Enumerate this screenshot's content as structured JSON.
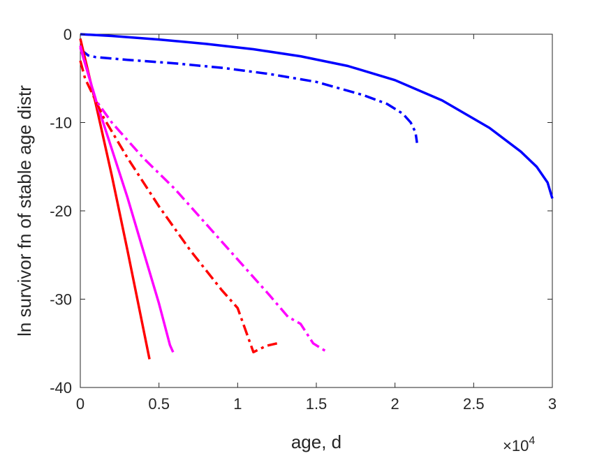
{
  "chart_data": {
    "type": "line",
    "title": "",
    "xlabel": "age, d",
    "ylabel": "ln survivor fn of stable age distr",
    "x_exponent_label": "×10",
    "x_exponent_power": "4",
    "xlim": [
      0,
      30000
    ],
    "ylim": [
      -40,
      0
    ],
    "x_ticks": [
      0,
      5000,
      10000,
      15000,
      20000,
      25000,
      30000
    ],
    "x_tick_labels": [
      "0",
      "0.5",
      "1",
      "1.5",
      "2",
      "2.5",
      "3"
    ],
    "y_ticks": [
      0,
      -10,
      -20,
      -30,
      -40
    ],
    "y_tick_labels": [
      "0",
      "-10",
      "-20",
      "-30",
      "-40"
    ],
    "grid": false,
    "series": [
      {
        "color": "#0000ff",
        "dash": "solid",
        "points": [
          [
            0,
            0
          ],
          [
            2000,
            -0.2
          ],
          [
            5000,
            -0.6
          ],
          [
            8000,
            -1.1
          ],
          [
            11000,
            -1.7
          ],
          [
            14000,
            -2.5
          ],
          [
            17000,
            -3.6
          ],
          [
            20000,
            -5.2
          ],
          [
            23000,
            -7.5
          ],
          [
            26000,
            -10.6
          ],
          [
            28000,
            -13.3
          ],
          [
            29000,
            -15.0
          ],
          [
            29700,
            -16.8
          ],
          [
            30000,
            -18.6
          ]
        ]
      },
      {
        "color": "#0000ff",
        "dash": "dashdot",
        "points": [
          [
            0,
            -1.7
          ],
          [
            500,
            -2.4
          ],
          [
            1000,
            -2.6
          ],
          [
            3000,
            -2.9
          ],
          [
            6000,
            -3.3
          ],
          [
            9000,
            -3.8
          ],
          [
            12000,
            -4.5
          ],
          [
            15000,
            -5.4
          ],
          [
            18000,
            -6.9
          ],
          [
            19500,
            -7.9
          ],
          [
            20500,
            -9.0
          ],
          [
            21000,
            -10.0
          ],
          [
            21300,
            -11.1
          ],
          [
            21400,
            -12.3
          ]
        ]
      },
      {
        "color": "#ff0000",
        "dash": "solid",
        "points": [
          [
            0,
            -0.5
          ],
          [
            1000,
            -8.0
          ],
          [
            2000,
            -16.0
          ],
          [
            3000,
            -24.5
          ],
          [
            4400,
            -36.8
          ]
        ]
      },
      {
        "color": "#ff00ff",
        "dash": "solid",
        "points": [
          [
            0,
            -1.5
          ],
          [
            1000,
            -7.5
          ],
          [
            2000,
            -13.0
          ],
          [
            3000,
            -18.5
          ],
          [
            4000,
            -24.5
          ],
          [
            5000,
            -30.5
          ],
          [
            5700,
            -35.2
          ],
          [
            5900,
            -36.0
          ]
        ]
      },
      {
        "color": "#ff0000",
        "dash": "dashdot",
        "points": [
          [
            0,
            -3.0
          ],
          [
            300,
            -5.0
          ],
          [
            700,
            -6.5
          ],
          [
            1500,
            -9.5
          ],
          [
            3000,
            -14.0
          ],
          [
            5000,
            -19.5
          ],
          [
            7000,
            -24.5
          ],
          [
            9000,
            -29.0
          ],
          [
            10000,
            -31.0
          ],
          [
            10500,
            -33.5
          ],
          [
            11000,
            -36.0
          ],
          [
            11800,
            -35.3
          ],
          [
            12500,
            -35.0
          ]
        ]
      },
      {
        "color": "#ff00ff",
        "dash": "dashdot",
        "points": [
          [
            0,
            -1.3
          ],
          [
            500,
            -4.5
          ],
          [
            1000,
            -7.5
          ],
          [
            2000,
            -10.0
          ],
          [
            4000,
            -14.0
          ],
          [
            6000,
            -17.5
          ],
          [
            8000,
            -21.5
          ],
          [
            10000,
            -25.5
          ],
          [
            12000,
            -29.5
          ],
          [
            13200,
            -32.0
          ],
          [
            14000,
            -32.8
          ],
          [
            14800,
            -35.0
          ],
          [
            15700,
            -36.0
          ]
        ]
      }
    ]
  }
}
